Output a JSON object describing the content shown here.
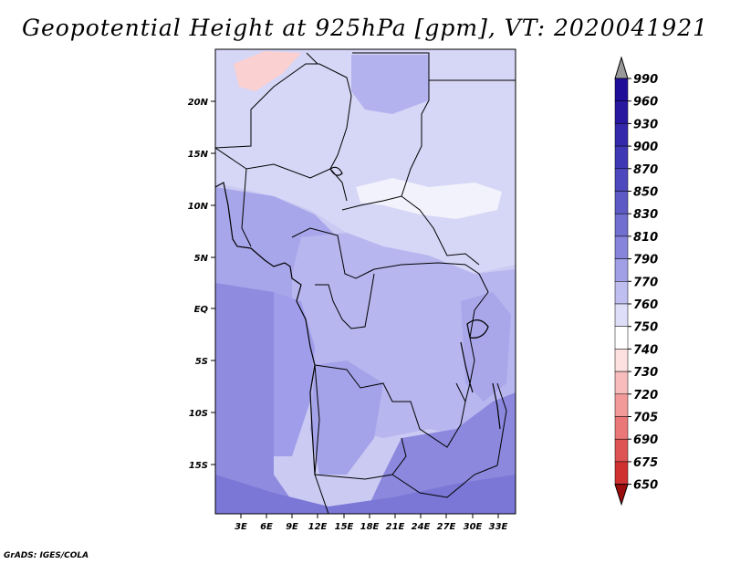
{
  "title": "Geopotential Height at 925hPa [gpm], VT: 2020041921",
  "footer": "GrADS: IGES/COLA",
  "map": {
    "variable": "Geopotential Height",
    "level": "925hPa",
    "units": "gpm",
    "valid_time": "2020041921",
    "lat_ticks": [
      "20N",
      "15N",
      "10N",
      "5N",
      "EQ",
      "5S",
      "10S",
      "15S"
    ],
    "lon_ticks": [
      "3E",
      "6E",
      "9E",
      "12E",
      "15E",
      "18E",
      "21E",
      "24E",
      "27E",
      "30E",
      "33E"
    ]
  },
  "colorbar": {
    "levels": [
      "990",
      "960",
      "930",
      "900",
      "870",
      "850",
      "830",
      "810",
      "790",
      "770",
      "760",
      "750",
      "740",
      "730",
      "720",
      "705",
      "690",
      "675",
      "650"
    ],
    "colors": [
      "#1f0f98",
      "#28189f",
      "#3429ab",
      "#3f38b4",
      "#4d48bd",
      "#5d5ac6",
      "#716fd0",
      "#8784db",
      "#a19fe6",
      "#bfbef0",
      "#dedef9",
      "#ffffff",
      "#fde0e0",
      "#f8bcbc",
      "#f29a9a",
      "#ea7878",
      "#de5454",
      "#cf3030",
      "#b91a1a",
      "#9b0c0c"
    ]
  },
  "regions": {
    "top_fill": "#d6d6f6",
    "mid_fill": "#b7b6ef",
    "congo_fill": "#a8a6ea",
    "west_fill": "#8f8ce0",
    "south_fill": "#7a77d6",
    "white_patch": "#f2f2fd",
    "pink_patch": "#fbd0d0"
  }
}
